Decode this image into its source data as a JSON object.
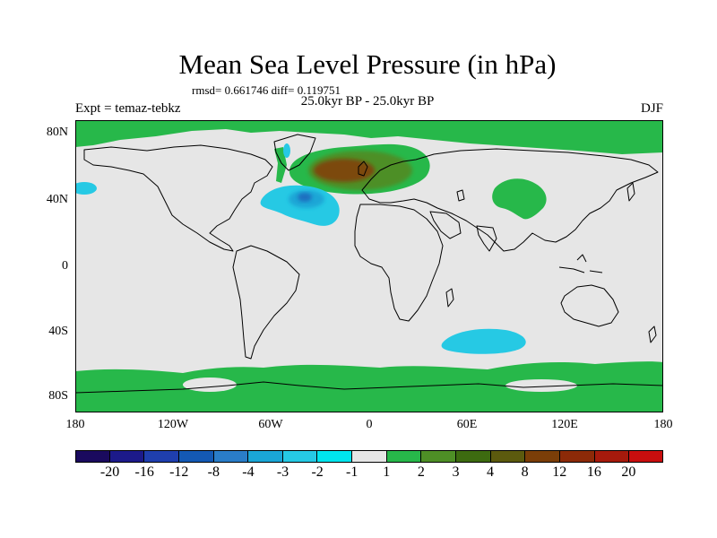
{
  "title": "Mean Sea Level Pressure (in hPa)",
  "stats": "rmsd= 0.661746 diff= 0.119751",
  "period": "25.0kyr BP - 25.0kyr BP",
  "experiment": "Expt = temaz-tebkz",
  "season": "DJF",
  "latitude_labels": [
    "80N",
    "40N",
    "0",
    "40S",
    "80S"
  ],
  "longitude_labels": [
    "180",
    "120W",
    "60W",
    "0",
    "60E",
    "120E",
    "180"
  ],
  "colorbar": {
    "colors": [
      "#1a0a5e",
      "#1c1a8a",
      "#1f3fae",
      "#1459b4",
      "#2a7dc8",
      "#1aa6d6",
      "#26c9e4",
      "#00e5ee",
      "#e6e6e6",
      "#27b84a",
      "#4e8f26",
      "#3d6b10",
      "#5c5a0e",
      "#7b3e08",
      "#8c2a08",
      "#a61a0c",
      "#c80e0e"
    ],
    "labels": [
      "-20",
      "-16",
      "-12",
      "-8",
      "-4",
      "-3",
      "-2",
      "-1",
      "1",
      "2",
      "3",
      "4",
      "8",
      "12",
      "16",
      "20"
    ]
  },
  "colors": {
    "ocean_neutral": "#e6e6e6",
    "positive_low": "#27b84a",
    "positive_mid": "#4e8f26",
    "positive_high": "#7b4a10",
    "negative_low": "#26c9e4",
    "negative_mid": "#1aa6d6",
    "negative_high": "#1f6fc0",
    "coast": "#000000"
  }
}
